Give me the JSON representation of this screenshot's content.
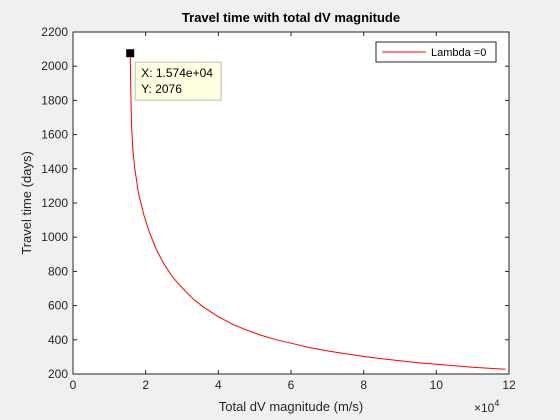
{
  "chart_data": {
    "type": "line",
    "title": "Travel time with total dV magnitude",
    "xlabel": "Total dV magnitude (m/s)",
    "ylabel": "Travel time (days)",
    "x_scale_label": "×10",
    "x_scale_exponent": "4",
    "x_tick_labels": [
      "0",
      "2",
      "4",
      "6",
      "8",
      "10",
      "12"
    ],
    "y_tick_labels": [
      "200",
      "400",
      "600",
      "800",
      "1000",
      "1200",
      "1400",
      "1600",
      "1800",
      "2000",
      "2200"
    ],
    "xlim": [
      0,
      120000
    ],
    "ylim": [
      200,
      2200
    ],
    "grid": false,
    "legend_location": "top-right",
    "series": [
      {
        "name": "Lambda =0",
        "color": "#ff0000",
        "x": [
          15740,
          15900,
          16100,
          16500,
          17000,
          18000,
          19500,
          21000,
          23000,
          25000,
          27500,
          30000,
          33000,
          36000,
          40000,
          44000,
          48000,
          52000,
          56000,
          60000,
          65000,
          70000,
          75000,
          80000,
          85000,
          90000,
          95000,
          100000,
          105000,
          110000,
          115000,
          119000
        ],
        "y": [
          2076,
          1850,
          1660,
          1510,
          1400,
          1260,
          1130,
          1030,
          925,
          845,
          765,
          705,
          640,
          590,
          535,
          490,
          455,
          425,
          400,
          380,
          355,
          335,
          318,
          303,
          289,
          277,
          266,
          257,
          248,
          240,
          233,
          228
        ]
      }
    ],
    "datatip": {
      "x_text": "X: 1.574e+04",
      "y_text": "Y: 2076",
      "x": 15740,
      "y": 2076
    }
  }
}
